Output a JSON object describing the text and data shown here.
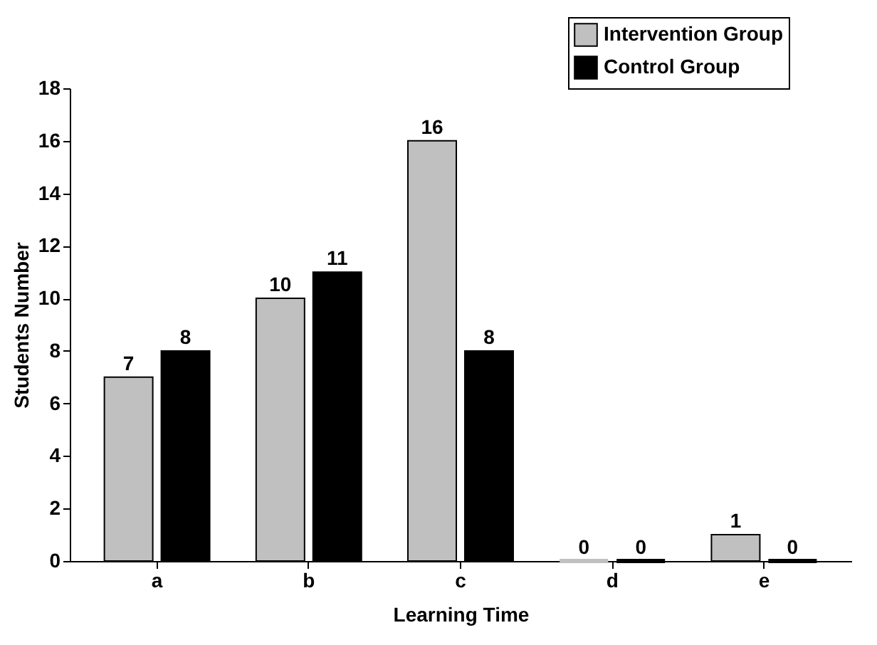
{
  "chart_data": {
    "type": "bar",
    "xlabel": "Learning Time",
    "ylabel": "Students Number",
    "categories": [
      "a",
      "b",
      "c",
      "d",
      "e"
    ],
    "series": [
      {
        "name": "Intervention Group",
        "color": "#c0c0c0",
        "values": [
          7,
          10,
          16,
          0,
          1
        ]
      },
      {
        "name": "Control Group",
        "color": "#000000",
        "values": [
          8,
          11,
          8,
          0,
          0
        ]
      }
    ],
    "ylim": [
      0,
      18
    ],
    "yticks": [
      0,
      2,
      4,
      6,
      8,
      10,
      12,
      14,
      16,
      18
    ],
    "data_labels": true,
    "grid": false,
    "legend": "top right"
  }
}
